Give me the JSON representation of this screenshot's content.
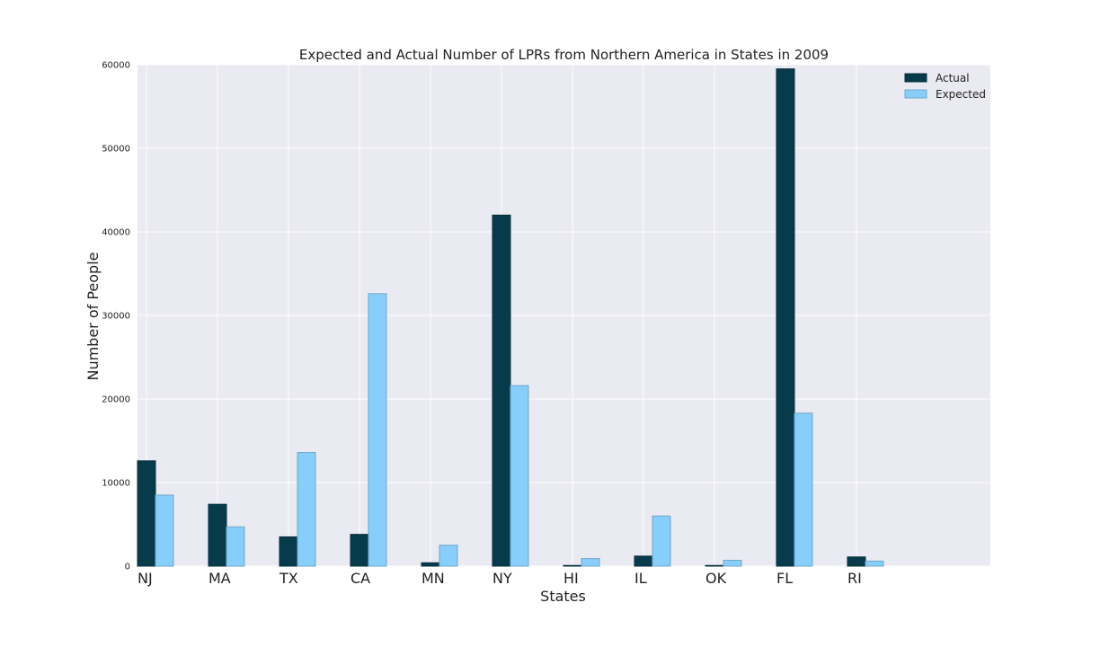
{
  "chart_data": {
    "type": "bar",
    "title": "Expected and Actual Number of LPRs from Northern America in States in 2009",
    "xlabel": "States",
    "ylabel": "Number of People",
    "categories": [
      "NJ",
      "MA",
      "TX",
      "CA",
      "MN",
      "NY",
      "HI",
      "IL",
      "OK",
      "FL",
      "RI"
    ],
    "series": [
      {
        "name": "Actual",
        "color": "#073b4c",
        "values": [
          12600,
          7400,
          3500,
          3800,
          400,
          42000,
          80,
          1200,
          80,
          59500,
          1100
        ]
      },
      {
        "name": "Expected",
        "color": "#87cefa",
        "values": [
          8500,
          4700,
          13600,
          32600,
          2500,
          21600,
          900,
          6000,
          700,
          18300,
          600
        ]
      }
    ],
    "ylim": [
      0,
      60000
    ],
    "yticks": [
      0,
      10000,
      20000,
      30000,
      40000,
      50000,
      60000
    ],
    "grid": true,
    "legend": "top-right",
    "background_color": "#eaeaf2"
  }
}
